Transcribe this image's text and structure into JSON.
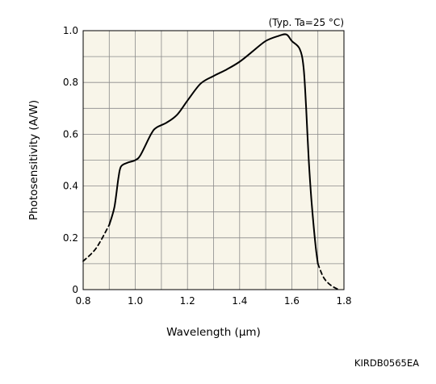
{
  "chart_data": {
    "type": "line",
    "title": "",
    "condition": "(Typ. Ta=25 °C)",
    "xlabel": "Wavelength (μm)",
    "ylabel": "Photosensitivity (A/W)",
    "xlim": [
      0.8,
      1.8
    ],
    "ylim": [
      0,
      1.0
    ],
    "x_tick_labels": [
      "0.8",
      "1.0",
      "1.2",
      "1.4",
      "1.6",
      "1.8"
    ],
    "y_tick_labels": [
      "0",
      "0.2",
      "0.4",
      "0.6",
      "0.8",
      "1.0"
    ],
    "grid": true,
    "plot_background": "#f8f5e9",
    "line_color": "#000000",
    "series": [
      {
        "segments": [
          {
            "style": "dashed",
            "points": [
              [
                0.8,
                0.11
              ],
              [
                0.85,
                0.16
              ],
              [
                0.9,
                0.25
              ]
            ]
          },
          {
            "style": "solid",
            "points": [
              [
                0.9,
                0.25
              ],
              [
                0.92,
                0.32
              ],
              [
                0.935,
                0.43
              ],
              [
                0.945,
                0.475
              ],
              [
                0.97,
                0.49
              ],
              [
                1.0,
                0.5
              ],
              [
                1.02,
                0.52
              ],
              [
                1.06,
                0.6
              ],
              [
                1.08,
                0.625
              ],
              [
                1.12,
                0.645
              ],
              [
                1.16,
                0.675
              ],
              [
                1.2,
                0.73
              ],
              [
                1.25,
                0.795
              ],
              [
                1.3,
                0.825
              ],
              [
                1.35,
                0.85
              ],
              [
                1.4,
                0.88
              ],
              [
                1.45,
                0.92
              ],
              [
                1.5,
                0.96
              ],
              [
                1.55,
                0.98
              ],
              [
                1.58,
                0.985
              ],
              [
                1.6,
                0.96
              ],
              [
                1.63,
                0.93
              ],
              [
                1.645,
                0.86
              ],
              [
                1.655,
                0.7
              ],
              [
                1.665,
                0.5
              ],
              [
                1.675,
                0.35
              ],
              [
                1.69,
                0.18
              ],
              [
                1.7,
                0.1
              ]
            ]
          },
          {
            "style": "dashed",
            "points": [
              [
                1.7,
                0.1
              ],
              [
                1.72,
                0.05
              ],
              [
                1.74,
                0.025
              ],
              [
                1.76,
                0.01
              ],
              [
                1.78,
                0.0
              ]
            ]
          }
        ]
      }
    ]
  },
  "doc_code": "KIRDB0565EA"
}
